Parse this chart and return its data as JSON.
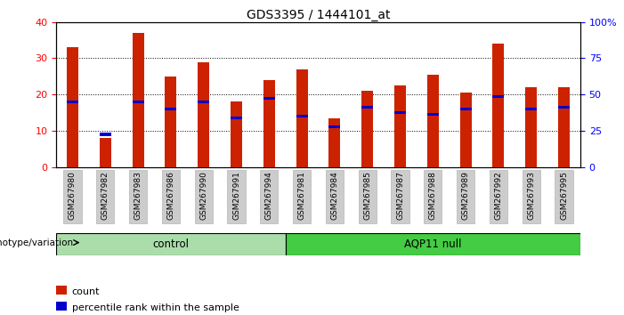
{
  "title": "GDS3395 / 1444101_at",
  "samples": [
    "GSM267980",
    "GSM267982",
    "GSM267983",
    "GSM267986",
    "GSM267990",
    "GSM267991",
    "GSM267994",
    "GSM267981",
    "GSM267984",
    "GSM267985",
    "GSM267987",
    "GSM267988",
    "GSM267989",
    "GSM267992",
    "GSM267993",
    "GSM267995"
  ],
  "counts": [
    33.0,
    8.0,
    37.0,
    25.0,
    29.0,
    18.0,
    24.0,
    27.0,
    13.5,
    21.0,
    22.5,
    25.5,
    20.5,
    34.0,
    22.0,
    22.0
  ],
  "percentile_ranks": [
    18.0,
    9.0,
    18.0,
    16.0,
    18.0,
    13.5,
    19.0,
    14.0,
    11.0,
    16.5,
    15.0,
    14.5,
    16.0,
    19.5,
    16.0,
    16.5
  ],
  "n_control": 7,
  "n_aqp": 9,
  "group_labels": [
    "control",
    "AQP11 null"
  ],
  "group_colors": [
    "#aaddaa",
    "#44cc44"
  ],
  "bar_color": "#cc2200",
  "percentile_color": "#0000cc",
  "ylim_left": [
    0,
    40
  ],
  "ylim_right": [
    0,
    100
  ],
  "left_yticks": [
    0,
    10,
    20,
    30,
    40
  ],
  "right_yticks": [
    0,
    25,
    50,
    75,
    100
  ],
  "background_color": "#ffffff",
  "tick_bg_color": "#cccccc",
  "genotype_label": "genotype/variation",
  "legend_count": "count",
  "legend_percentile": "percentile rank within the sample",
  "bar_width": 0.35
}
